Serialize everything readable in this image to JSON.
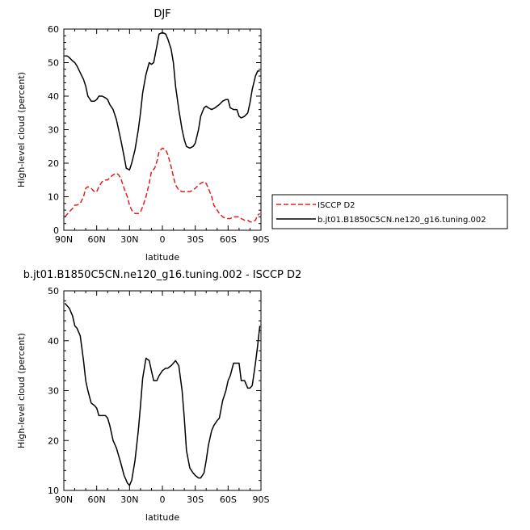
{
  "chart_data": [
    {
      "type": "line",
      "title": "DJF",
      "xlabel": "latitude",
      "ylabel": "High-level cloud (percent)",
      "xlim": [
        90,
        -90
      ],
      "ylim": [
        0,
        60
      ],
      "xtick_values": [
        90,
        60,
        30,
        0,
        -30,
        -60,
        -90
      ],
      "xtick_labels": [
        "90N",
        "60N",
        "30N",
        "0",
        "30S",
        "60S",
        "90S"
      ],
      "ytick_values": [
        0,
        10,
        20,
        30,
        40,
        50,
        60
      ],
      "ytick_labels": [
        "0",
        "10",
        "20",
        "30",
        "40",
        "50",
        "60"
      ],
      "legend_position": "right",
      "series": [
        {
          "name": "ISCCP D2",
          "color": "#e0201e",
          "dash": "dashed",
          "x": [
            89,
            85,
            82,
            80,
            78,
            75,
            72,
            70,
            68,
            65,
            62,
            60,
            58,
            55,
            52,
            50,
            47,
            45,
            42,
            40,
            38,
            35,
            32,
            30,
            28,
            25,
            22,
            20,
            18,
            15,
            12,
            10,
            7,
            5,
            3,
            0,
            -3,
            -5,
            -8,
            -10,
            -12,
            -15,
            -18,
            -20,
            -23,
            -25,
            -28,
            -30,
            -33,
            -35,
            -38,
            -40,
            -42,
            -45,
            -47,
            -50,
            -52,
            -55,
            -58,
            -60,
            -62,
            -65,
            -68,
            -70,
            -72,
            -75,
            -78,
            -80,
            -82,
            -85,
            -87,
            -89
          ],
          "y": [
            4.0,
            5.5,
            6.5,
            7.5,
            7.5,
            8.0,
            10.0,
            12.5,
            13.0,
            12.5,
            11.5,
            11.5,
            13.0,
            14.5,
            15.0,
            15.0,
            16.0,
            16.5,
            17.0,
            16.5,
            15.5,
            12.5,
            10.0,
            7.5,
            6.0,
            5.0,
            5.0,
            5.5,
            7.0,
            10.0,
            14.0,
            17.5,
            18.5,
            20.5,
            23.5,
            24.5,
            24.0,
            22.5,
            19.0,
            16.0,
            13.5,
            12.0,
            11.5,
            11.5,
            11.5,
            11.5,
            12.0,
            12.5,
            13.5,
            14.0,
            14.5,
            14.0,
            12.5,
            10.0,
            7.5,
            6.0,
            5.0,
            4.0,
            3.5,
            3.5,
            3.5,
            4.0,
            4.0,
            4.0,
            3.5,
            3.0,
            3.0,
            2.5,
            2.5,
            3.0,
            4.5,
            5.0
          ]
        },
        {
          "name": "b.jt01.B1850C5CN.ne120_g16.tuning.002",
          "color": "#000000",
          "dash": "solid",
          "x": [
            89,
            87,
            85,
            82,
            80,
            78,
            75,
            72,
            70,
            68,
            65,
            62,
            60,
            58,
            55,
            52,
            50,
            48,
            45,
            42,
            40,
            38,
            35,
            33,
            30,
            28,
            25,
            22,
            20,
            18,
            15,
            12,
            10,
            8,
            5,
            3,
            0,
            -3,
            -5,
            -8,
            -10,
            -12,
            -15,
            -18,
            -20,
            -22,
            -25,
            -28,
            -30,
            -33,
            -35,
            -38,
            -40,
            -42,
            -45,
            -48,
            -50,
            -52,
            -55,
            -58,
            -60,
            -62,
            -65,
            -68,
            -70,
            -72,
            -75,
            -78,
            -80,
            -82,
            -85,
            -87,
            -89
          ],
          "y": [
            52,
            52,
            51.5,
            50.5,
            50,
            49,
            47,
            45,
            43,
            40,
            38.5,
            38.5,
            39,
            40,
            40,
            39.5,
            39,
            37.5,
            36,
            33,
            30,
            27,
            22,
            18.5,
            18,
            20,
            24,
            30,
            35,
            41,
            46.5,
            50,
            49.5,
            50,
            55,
            58.5,
            59,
            58.5,
            57,
            54,
            50,
            43,
            36,
            30,
            27,
            25,
            24.5,
            25,
            26,
            30,
            34,
            36.5,
            37,
            36.5,
            36,
            36.5,
            37,
            37.5,
            38.5,
            39,
            39,
            36.5,
            36,
            36,
            34,
            33.5,
            34,
            35,
            38,
            42,
            46,
            47.5,
            47.5
          ]
        }
      ]
    },
    {
      "type": "line",
      "title": "b.jt01.B1850C5CN.ne120_g16.tuning.002 - ISCCP D2",
      "xlabel": "latitude",
      "ylabel": "High-level cloud (percent)",
      "xlim": [
        90,
        -90
      ],
      "ylim": [
        10,
        50
      ],
      "xtick_values": [
        90,
        60,
        30,
        0,
        -30,
        -60,
        -90
      ],
      "xtick_labels": [
        "90N",
        "60N",
        "30N",
        "0",
        "30S",
        "60S",
        "90S"
      ],
      "ytick_values": [
        10,
        20,
        30,
        40,
        50
      ],
      "ytick_labels": [
        "10",
        "20",
        "30",
        "40",
        "50"
      ],
      "series": [
        {
          "color": "#000000",
          "dash": "solid",
          "x": [
            89,
            85,
            82,
            80,
            78,
            75,
            72,
            70,
            68,
            65,
            62,
            60,
            58,
            55,
            52,
            50,
            48,
            45,
            42,
            40,
            38,
            35,
            32,
            30,
            28,
            25,
            22,
            20,
            18,
            15,
            12,
            10,
            8,
            5,
            3,
            0,
            -3,
            -5,
            -8,
            -10,
            -12,
            -15,
            -18,
            -20,
            -22,
            -25,
            -28,
            -30,
            -33,
            -35,
            -38,
            -40,
            -42,
            -45,
            -47,
            -50,
            -52,
            -55,
            -58,
            -60,
            -62,
            -65,
            -68,
            -70,
            -72,
            -75,
            -78,
            -80,
            -82,
            -85,
            -87,
            -89
          ],
          "y": [
            47.5,
            46.5,
            45,
            43,
            42.5,
            41,
            36,
            32,
            30,
            27.5,
            27,
            26.5,
            25,
            25,
            25,
            24.5,
            23,
            20,
            18.5,
            17,
            15.5,
            13,
            11.5,
            11,
            12,
            16,
            22,
            27,
            32.5,
            36.5,
            36,
            34,
            32,
            32,
            33,
            34,
            34.5,
            34.5,
            35,
            35.5,
            36,
            35,
            30,
            24.5,
            18,
            14.5,
            13.5,
            13,
            12.5,
            12.5,
            13.5,
            16,
            19,
            22,
            23,
            24,
            24.5,
            28,
            30,
            32,
            33,
            35.5,
            35.5,
            35.5,
            32,
            32,
            30.5,
            30.5,
            31,
            35.5,
            39,
            43
          ]
        }
      ]
    }
  ]
}
